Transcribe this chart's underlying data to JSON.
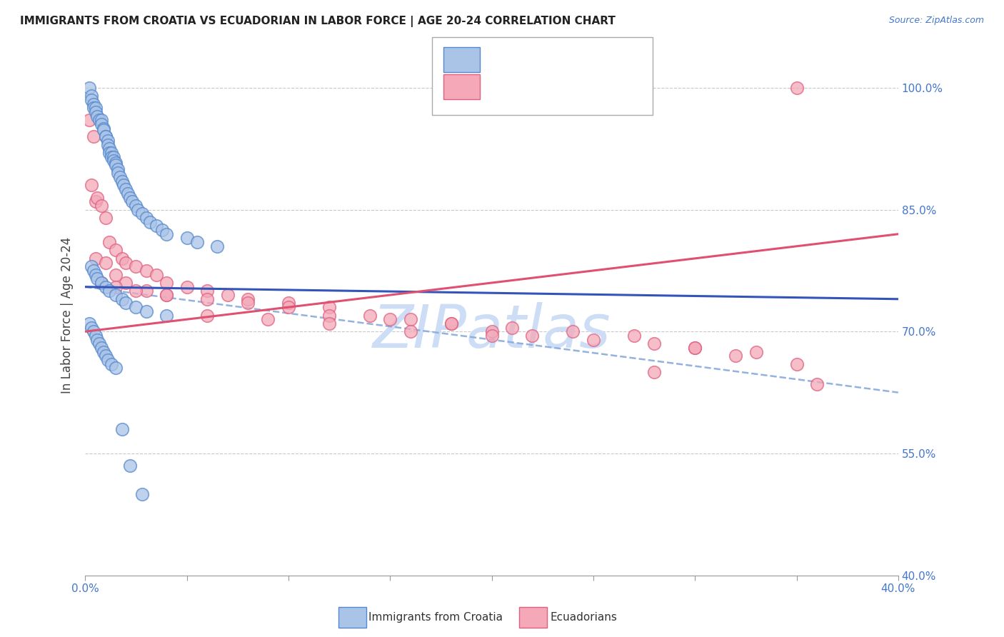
{
  "title": "IMMIGRANTS FROM CROATIA VS ECUADORIAN IN LABOR FORCE | AGE 20-24 CORRELATION CHART",
  "source": "Source: ZipAtlas.com",
  "ylabel": "In Labor Force | Age 20-24",
  "background_color": "#ffffff",
  "grid_color": "#bbbbbb",
  "blue_scatter_fill": "#aac4e8",
  "blue_scatter_edge": "#5588cc",
  "pink_scatter_fill": "#f4a8b8",
  "pink_scatter_edge": "#e06080",
  "blue_line_color": "#3355bb",
  "pink_line_color": "#e05070",
  "blue_dash_color": "#88aadd",
  "watermark_color": "#ccddf5",
  "label_color": "#4477cc",
  "legend_text_color": "#3366cc",
  "ytick_vals": [
    0.4,
    0.55,
    0.7,
    0.85,
    1.0
  ],
  "ytick_labels": [
    "40.0%",
    "55.0%",
    "70.0%",
    "85.0%",
    "100.0%"
  ],
  "xlim": [
    0.0,
    0.4
  ],
  "ylim": [
    0.4,
    1.04
  ],
  "croatia_x": [
    0.002,
    0.003,
    0.003,
    0.004,
    0.004,
    0.005,
    0.005,
    0.006,
    0.007,
    0.008,
    0.008,
    0.009,
    0.009,
    0.01,
    0.01,
    0.011,
    0.011,
    0.012,
    0.012,
    0.013,
    0.013,
    0.014,
    0.014,
    0.015,
    0.015,
    0.016,
    0.016,
    0.017,
    0.018,
    0.019,
    0.02,
    0.021,
    0.022,
    0.023,
    0.025,
    0.026,
    0.028,
    0.03,
    0.032,
    0.035,
    0.038,
    0.04,
    0.05,
    0.055,
    0.065,
    0.003,
    0.004,
    0.005,
    0.006,
    0.008,
    0.01,
    0.012,
    0.015,
    0.018,
    0.02,
    0.025,
    0.03,
    0.04,
    0.002,
    0.003,
    0.004,
    0.005,
    0.006,
    0.007,
    0.008,
    0.009,
    0.01,
    0.011,
    0.013,
    0.015,
    0.018,
    0.022,
    0.028
  ],
  "croatia_y": [
    1.0,
    0.99,
    0.985,
    0.98,
    0.975,
    0.975,
    0.97,
    0.965,
    0.96,
    0.96,
    0.955,
    0.95,
    0.948,
    0.94,
    0.94,
    0.935,
    0.93,
    0.925,
    0.92,
    0.92,
    0.915,
    0.915,
    0.91,
    0.908,
    0.905,
    0.9,
    0.895,
    0.89,
    0.885,
    0.88,
    0.875,
    0.87,
    0.865,
    0.86,
    0.855,
    0.85,
    0.845,
    0.84,
    0.835,
    0.83,
    0.825,
    0.82,
    0.815,
    0.81,
    0.805,
    0.78,
    0.775,
    0.77,
    0.765,
    0.76,
    0.755,
    0.75,
    0.745,
    0.74,
    0.735,
    0.73,
    0.725,
    0.72,
    0.71,
    0.705,
    0.7,
    0.695,
    0.69,
    0.685,
    0.68,
    0.675,
    0.67,
    0.665,
    0.66,
    0.655,
    0.58,
    0.535,
    0.5
  ],
  "ecuador_x": [
    0.002,
    0.003,
    0.004,
    0.005,
    0.006,
    0.008,
    0.01,
    0.012,
    0.015,
    0.018,
    0.02,
    0.025,
    0.03,
    0.035,
    0.04,
    0.05,
    0.06,
    0.07,
    0.08,
    0.1,
    0.12,
    0.14,
    0.16,
    0.18,
    0.2,
    0.22,
    0.25,
    0.28,
    0.3,
    0.32,
    0.35,
    0.005,
    0.01,
    0.015,
    0.02,
    0.03,
    0.04,
    0.06,
    0.08,
    0.1,
    0.12,
    0.15,
    0.18,
    0.21,
    0.24,
    0.27,
    0.3,
    0.33,
    0.36,
    0.008,
    0.015,
    0.025,
    0.04,
    0.06,
    0.09,
    0.12,
    0.16,
    0.2,
    0.28,
    0.35
  ],
  "ecuador_y": [
    0.96,
    0.88,
    0.94,
    0.86,
    0.865,
    0.855,
    0.84,
    0.81,
    0.8,
    0.79,
    0.785,
    0.78,
    0.775,
    0.77,
    0.76,
    0.755,
    0.75,
    0.745,
    0.74,
    0.735,
    0.73,
    0.72,
    0.715,
    0.71,
    0.7,
    0.695,
    0.69,
    0.685,
    0.68,
    0.67,
    0.66,
    0.79,
    0.785,
    0.77,
    0.76,
    0.75,
    0.745,
    0.74,
    0.735,
    0.73,
    0.72,
    0.715,
    0.71,
    0.705,
    0.7,
    0.695,
    0.68,
    0.675,
    0.635,
    0.76,
    0.755,
    0.75,
    0.745,
    0.72,
    0.715,
    0.71,
    0.7,
    0.695,
    0.65,
    1.0
  ]
}
